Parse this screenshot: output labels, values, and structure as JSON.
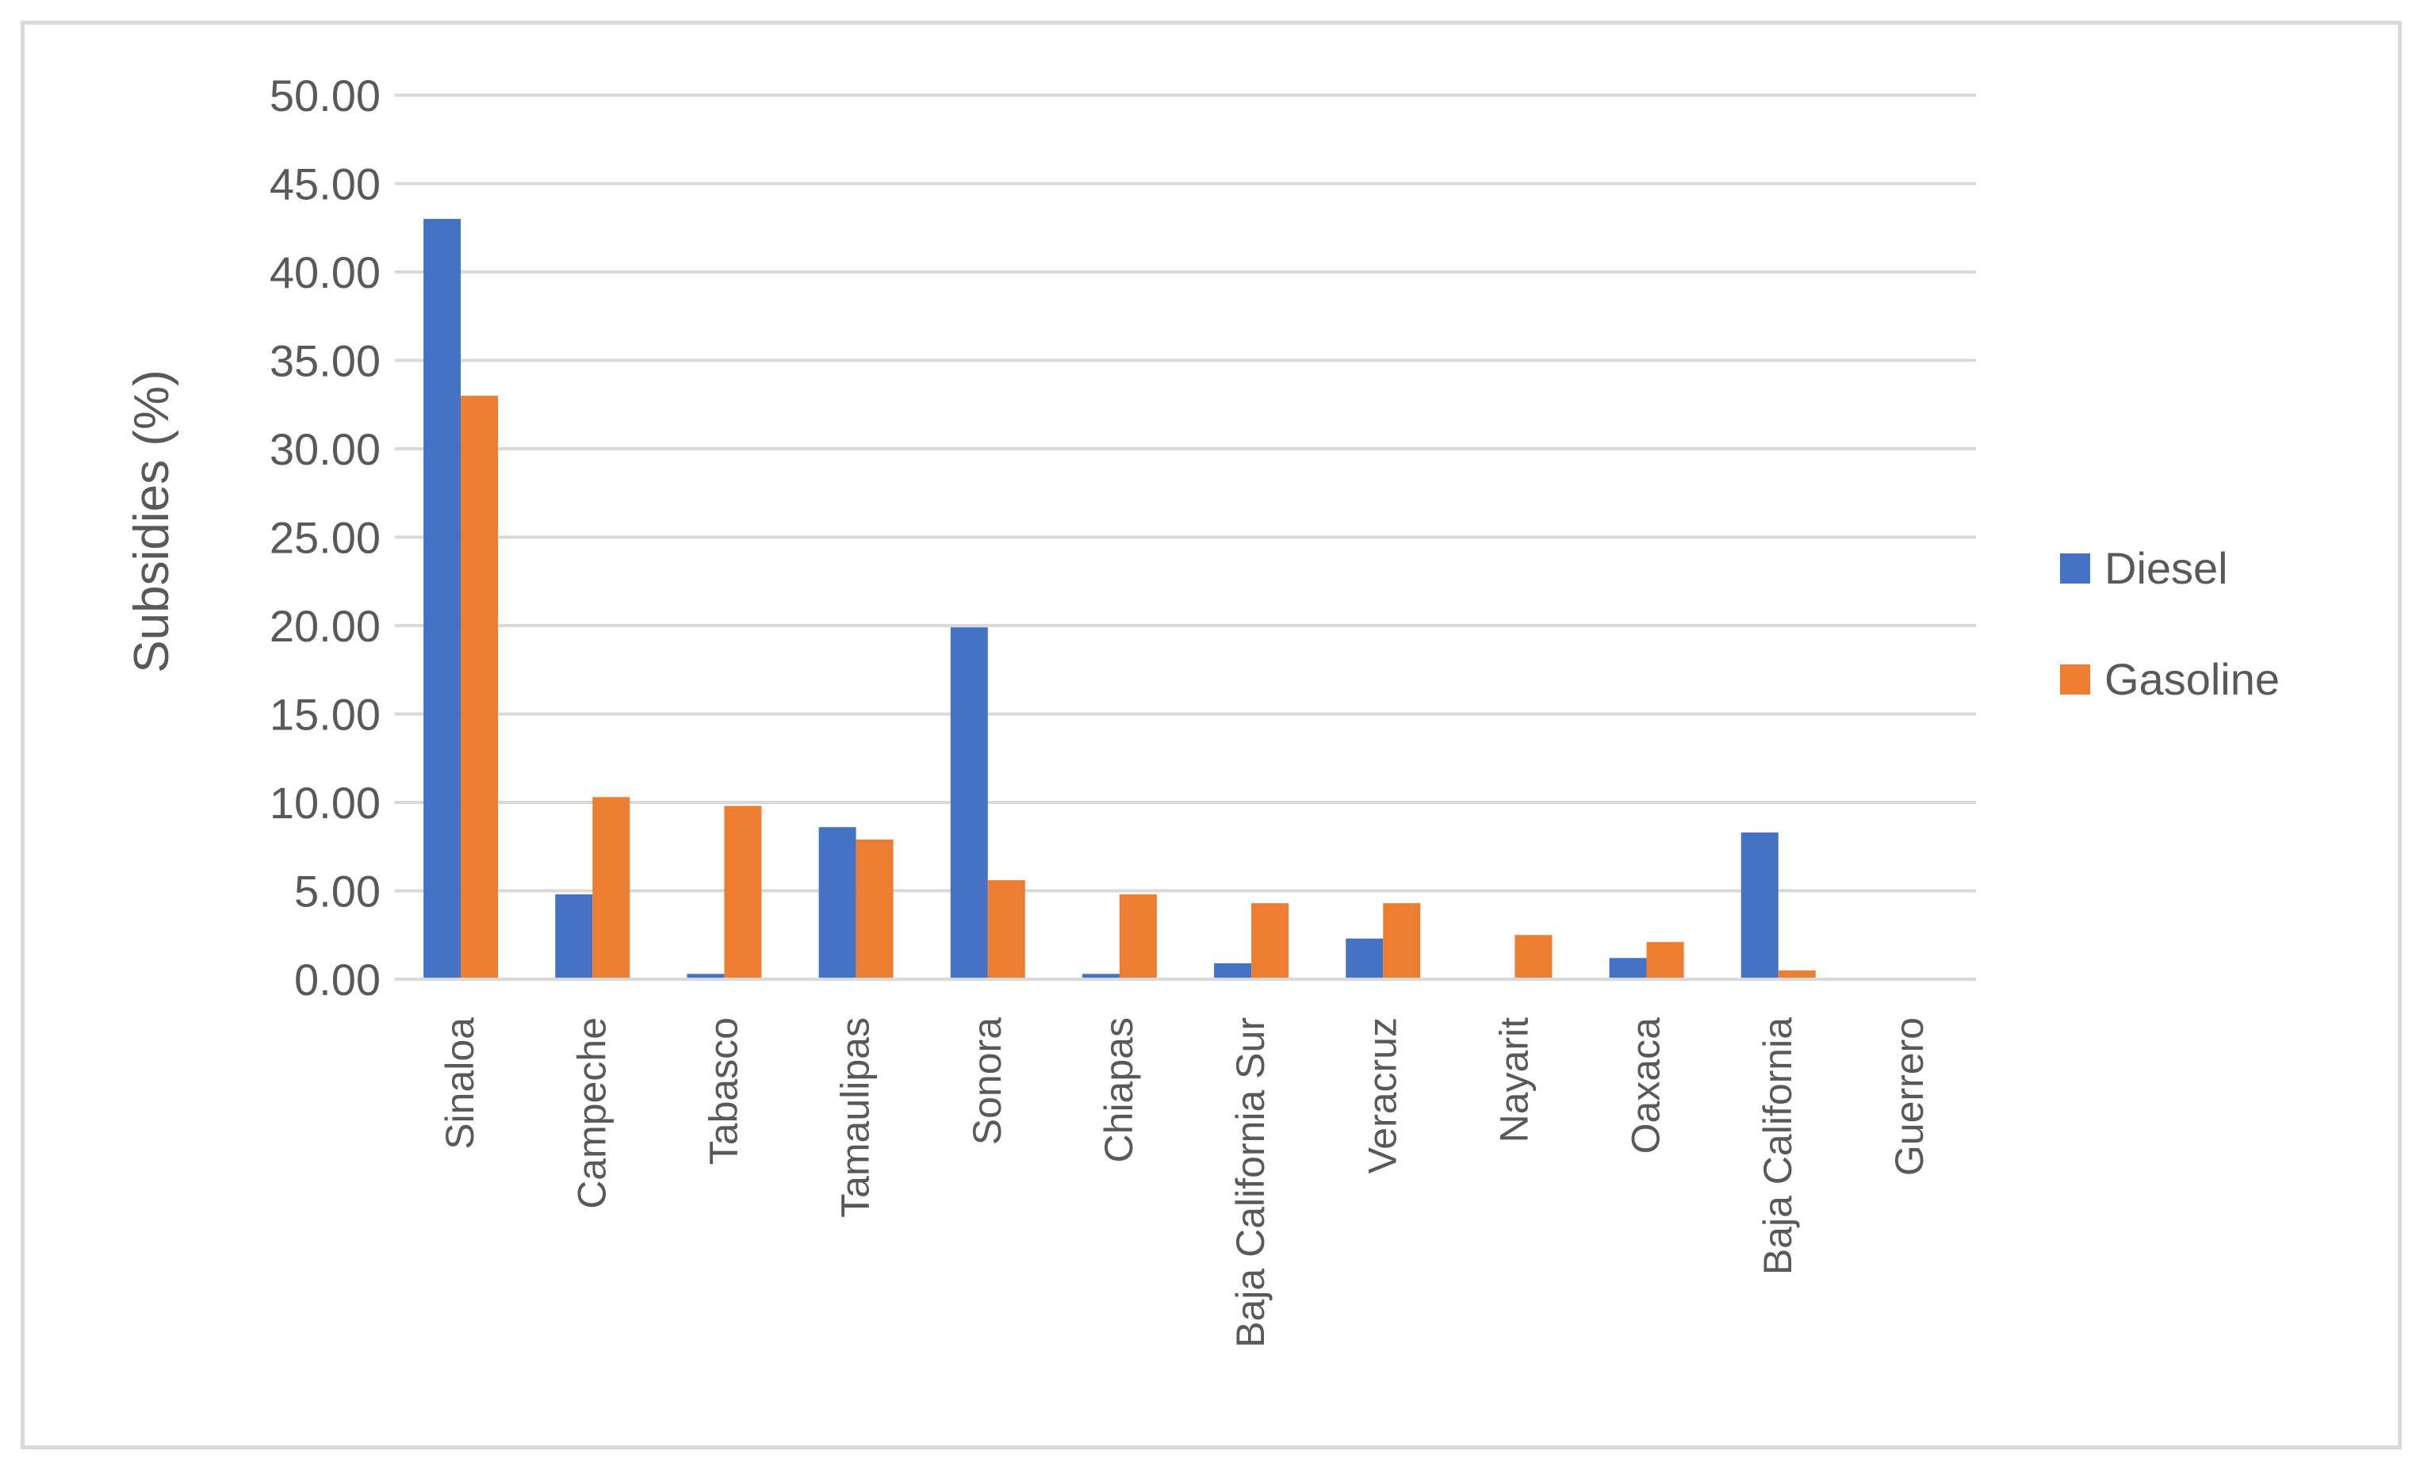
{
  "chart_data": {
    "type": "bar",
    "title": "",
    "xlabel": "",
    "ylabel": "Subsidies (%)",
    "ylim": [
      0,
      50
    ],
    "ytick_step": 5,
    "ytick_decimals": 2,
    "grid": true,
    "legend_position": "right",
    "categories": [
      "Sinaloa",
      "Campeche",
      "Tabasco",
      "Tamaulipas",
      "Sonora",
      "Chiapas",
      "Baja California Sur",
      "Veracruz",
      "Nayarit",
      "Oaxaca",
      "Baja California",
      "Guerrero"
    ],
    "series": [
      {
        "name": "Diesel",
        "color": "#4472c4",
        "values": [
          43.0,
          4.8,
          0.3,
          8.6,
          19.9,
          0.3,
          0.9,
          2.3,
          0.0,
          1.2,
          8.3,
          0.0
        ]
      },
      {
        "name": "Gasoline",
        "color": "#ed7d31",
        "values": [
          33.0,
          10.3,
          9.8,
          7.9,
          5.6,
          4.8,
          4.3,
          4.3,
          2.5,
          2.1,
          0.5,
          0.0
        ]
      }
    ],
    "gridline_color": "#d9d9d9"
  }
}
